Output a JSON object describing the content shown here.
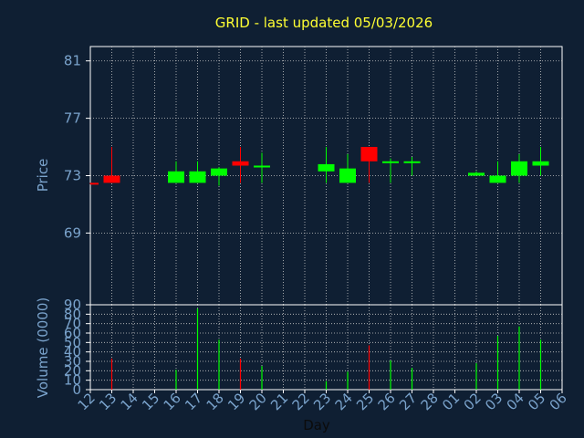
{
  "chart_data": [
    {
      "type": "candlestick",
      "title": "GRID - last updated 05/03/2026",
      "ylabel": "Price",
      "ylim": [
        64.0,
        82.0
      ],
      "yticks": [
        69,
        73,
        77,
        81
      ],
      "grid": true,
      "x_labels": [
        "12",
        "13",
        "14",
        "15",
        "16",
        "17",
        "18",
        "19",
        "20",
        "21",
        "22",
        "23",
        "24",
        "25",
        "26",
        "27",
        "28",
        "01",
        "02",
        "03",
        "04",
        "05",
        "06"
      ],
      "candles": [
        {
          "day": "12",
          "open": 72.5,
          "high": 72.5,
          "low": 72.4,
          "close": 72.4
        },
        {
          "day": "13",
          "open": 73.0,
          "high": 75.0,
          "low": 72.5,
          "close": 72.5
        },
        {
          "day": "16",
          "open": 72.5,
          "high": 74.0,
          "low": 72.5,
          "close": 73.3
        },
        {
          "day": "17",
          "open": 72.5,
          "high": 74.0,
          "low": 72.5,
          "close": 73.3
        },
        {
          "day": "18",
          "open": 73.0,
          "high": 73.6,
          "low": 72.3,
          "close": 73.5
        },
        {
          "day": "19",
          "open": 74.0,
          "high": 75.0,
          "low": 72.5,
          "close": 73.7
        },
        {
          "day": "20",
          "open": 73.6,
          "high": 74.6,
          "low": 72.5,
          "close": 73.7
        },
        {
          "day": "23",
          "open": 73.3,
          "high": 75.0,
          "low": 72.5,
          "close": 73.8
        },
        {
          "day": "24",
          "open": 72.5,
          "high": 74.5,
          "low": 72.5,
          "close": 73.5
        },
        {
          "day": "25",
          "open": 75.0,
          "high": 75.0,
          "low": 72.5,
          "close": 74.0
        },
        {
          "day": "26",
          "open": 73.9,
          "high": 74.2,
          "low": 72.5,
          "close": 74.0
        },
        {
          "day": "27",
          "open": 73.9,
          "high": 74.3,
          "low": 73.0,
          "close": 74.0
        },
        {
          "day": "02",
          "open": 73.0,
          "high": 73.3,
          "low": 73.0,
          "close": 73.2
        },
        {
          "day": "03",
          "open": 72.5,
          "high": 74.0,
          "low": 72.5,
          "close": 73.0
        },
        {
          "day": "04",
          "open": 73.0,
          "high": 74.5,
          "low": 72.5,
          "close": 74.0
        },
        {
          "day": "05",
          "open": 73.7,
          "high": 75.0,
          "low": 73.0,
          "close": 74.0
        }
      ],
      "colors": {
        "up": "#00ff00",
        "down": "#ff0000"
      }
    },
    {
      "type": "bar",
      "ylabel": "Volume (0000)",
      "xlabel": "Day",
      "ylim": [
        0,
        90
      ],
      "yticks": [
        0,
        10,
        20,
        30,
        40,
        50,
        60,
        70,
        80,
        90
      ],
      "grid": true,
      "x_labels": [
        "12",
        "13",
        "14",
        "15",
        "16",
        "17",
        "18",
        "19",
        "20",
        "21",
        "22",
        "23",
        "24",
        "25",
        "26",
        "27",
        "28",
        "01",
        "02",
        "03",
        "04",
        "05",
        "06"
      ],
      "bars": [
        {
          "day": "12",
          "value": 0,
          "color": "#00ff00"
        },
        {
          "day": "13",
          "value": 33,
          "color": "#ff0000"
        },
        {
          "day": "16",
          "value": 21,
          "color": "#00ff00"
        },
        {
          "day": "17",
          "value": 86,
          "color": "#00ff00"
        },
        {
          "day": "18",
          "value": 53,
          "color": "#00ff00"
        },
        {
          "day": "19",
          "value": 33,
          "color": "#ff0000"
        },
        {
          "day": "20",
          "value": 25,
          "color": "#00ff00"
        },
        {
          "day": "23",
          "value": 9,
          "color": "#00ff00"
        },
        {
          "day": "24",
          "value": 19,
          "color": "#00ff00"
        },
        {
          "day": "25",
          "value": 47,
          "color": "#ff0000"
        },
        {
          "day": "26",
          "value": 31,
          "color": "#00ff00"
        },
        {
          "day": "27",
          "value": 23,
          "color": "#00ff00"
        },
        {
          "day": "02",
          "value": 28,
          "color": "#00ff00"
        },
        {
          "day": "03",
          "value": 57,
          "color": "#00ff00"
        },
        {
          "day": "04",
          "value": 67,
          "color": "#00ff00"
        },
        {
          "day": "05",
          "value": 53,
          "color": "#00ff00"
        }
      ]
    }
  ]
}
